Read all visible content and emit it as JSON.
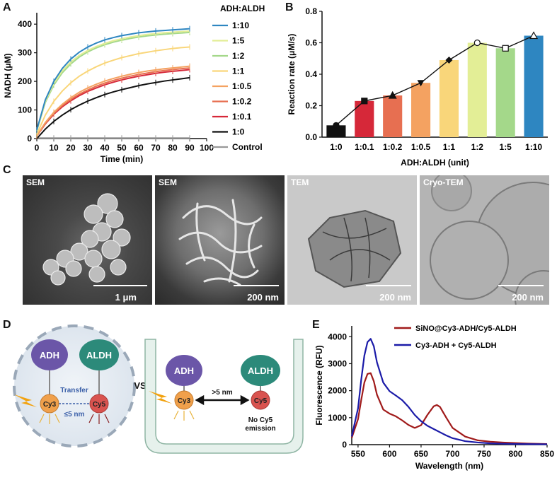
{
  "panels": {
    "a": "A",
    "b": "B",
    "c": "C",
    "d": "D",
    "e": "E"
  },
  "chart_data": [
    {
      "panel": "A",
      "type": "line",
      "xlabel": "Time (min)",
      "ylabel": "NADH (μM)",
      "xlim": [
        0,
        100
      ],
      "ylim": [
        0,
        440
      ],
      "xticks": [
        0,
        10,
        20,
        30,
        40,
        50,
        60,
        70,
        80,
        90,
        100
      ],
      "yticks": [
        0,
        100,
        200,
        300,
        400
      ],
      "legend_title": "ADH:ALDH",
      "legend_position": "right",
      "x": [
        0,
        5,
        10,
        15,
        20,
        25,
        30,
        35,
        40,
        45,
        50,
        55,
        60,
        65,
        70,
        75,
        80,
        85,
        90
      ],
      "series": [
        {
          "name": "1:10",
          "color": "#2e86c1",
          "values": [
            30,
            135,
            200,
            245,
            278,
            302,
            320,
            334,
            345,
            353,
            360,
            365,
            370,
            373,
            376,
            378,
            380,
            382,
            384
          ]
        },
        {
          "name": "1:5",
          "color": "#e3ee96",
          "values": [
            28,
            130,
            193,
            237,
            268,
            291,
            308,
            322,
            333,
            342,
            349,
            355,
            360,
            364,
            367,
            370,
            372,
            374,
            376
          ]
        },
        {
          "name": "1:2",
          "color": "#a4d88a",
          "values": [
            27,
            126,
            187,
            230,
            261,
            285,
            303,
            317,
            328,
            337,
            344,
            350,
            355,
            359,
            362,
            365,
            367,
            369,
            371
          ]
        },
        {
          "name": "1:1",
          "color": "#f9d67a",
          "values": [
            15,
            82,
            130,
            166,
            195,
            218,
            236,
            251,
            264,
            274,
            283,
            290,
            297,
            302,
            307,
            311,
            315,
            318,
            320
          ]
        },
        {
          "name": "1:0.5",
          "color": "#f4a261",
          "values": [
            10,
            56,
            92,
            120,
            143,
            162,
            177,
            190,
            201,
            210,
            218,
            225,
            231,
            236,
            240,
            244,
            247,
            250,
            253
          ]
        },
        {
          "name": "1:0.2",
          "color": "#e76f51",
          "values": [
            9,
            53,
            88,
            115,
            137,
            155,
            170,
            183,
            194,
            203,
            211,
            218,
            224,
            229,
            234,
            238,
            241,
            244,
            247
          ]
        },
        {
          "name": "1:0.1",
          "color": "#d62839",
          "values": [
            9,
            51,
            85,
            111,
            132,
            150,
            165,
            177,
            188,
            197,
            205,
            212,
            218,
            223,
            228,
            232,
            235,
            238,
            241
          ]
        },
        {
          "name": "1:0",
          "color": "#111111",
          "values": [
            0,
            33,
            60,
            82,
            101,
            117,
            131,
            143,
            154,
            163,
            171,
            178,
            185,
            191,
            196,
            201,
            205,
            209,
            213
          ]
        },
        {
          "name": "Control",
          "color": "#999999",
          "values": [
            2,
            2,
            2,
            2,
            2,
            2,
            2,
            2,
            2,
            2,
            2,
            2,
            2,
            2,
            2,
            2,
            2,
            2,
            2
          ]
        }
      ]
    },
    {
      "panel": "B",
      "type": "bar",
      "xlabel": "ADH:ALDH (unit)",
      "ylabel": "Reaction rate (μM/s)",
      "ylim": [
        0,
        0.8
      ],
      "yticks": [
        0,
        0.2,
        0.4,
        0.6,
        0.8
      ],
      "categories": [
        "1:0",
        "1:0.1",
        "1:0.2",
        "1:0.5",
        "1:1",
        "1:2",
        "1:5",
        "1:10"
      ],
      "values": [
        0.075,
        0.23,
        0.265,
        0.345,
        0.49,
        0.6,
        0.565,
        0.645
      ],
      "errors": [
        0.01,
        0.008,
        0.008,
        0.008,
        0.008,
        0.008,
        0.008,
        0.008
      ],
      "colors": [
        "#111111",
        "#d62839",
        "#e76f51",
        "#f4a261",
        "#f9d67a",
        "#e3ee96",
        "#a4d88a",
        "#2e86c1"
      ],
      "line_markers": [
        "circle",
        "square",
        "triangle",
        "inverted-triangle",
        "diamond",
        "circle",
        "square",
        "triangle"
      ]
    },
    {
      "panel": "E",
      "type": "line",
      "xlabel": "Wavelength (nm)",
      "ylabel": "Fluorescence (RFU)",
      "xlim": [
        540,
        850
      ],
      "ylim": [
        0,
        4400
      ],
      "xticks": [
        550,
        600,
        650,
        700,
        750,
        800,
        850
      ],
      "yticks": [
        0,
        1000,
        2000,
        3000,
        4000
      ],
      "legend_position": "top-right",
      "x": [
        540,
        550,
        555,
        560,
        565,
        570,
        575,
        580,
        590,
        600,
        610,
        620,
        630,
        640,
        650,
        660,
        670,
        675,
        680,
        690,
        700,
        720,
        740,
        760,
        780,
        800,
        820,
        850
      ],
      "series": [
        {
          "name": "SiNO@Cy3-ADH/Cy5-ALDH",
          "color": "#a01a1a",
          "values": [
            250,
            950,
            1650,
            2300,
            2620,
            2650,
            2350,
            1850,
            1300,
            1150,
            1050,
            900,
            730,
            620,
            720,
            1100,
            1420,
            1470,
            1400,
            1000,
            620,
            300,
            160,
            110,
            80,
            60,
            40,
            25
          ]
        },
        {
          "name": "Cy3-ADH + Cy5-ALDH",
          "color": "#1b1ba8",
          "values": [
            300,
            1350,
            2400,
            3300,
            3800,
            3920,
            3650,
            3050,
            2300,
            1980,
            1820,
            1650,
            1400,
            1100,
            870,
            700,
            580,
            520,
            460,
            340,
            240,
            130,
            80,
            50,
            35,
            25,
            20,
            15
          ]
        }
      ]
    }
  ],
  "panel_c": {
    "images": [
      {
        "label": "SEM",
        "scale": "1 μm"
      },
      {
        "label": "SEM",
        "scale": "200 nm"
      },
      {
        "label": "TEM",
        "scale": "200 nm"
      },
      {
        "label": "Cryo-TEM",
        "scale": "200 nm"
      }
    ]
  },
  "panel_d": {
    "adh": "ADH",
    "aldh": "ALDH",
    "cy3": "Cy3",
    "cy5": "Cy5",
    "transfer": "Transfer",
    "distance_close": "≤5 nm",
    "vs": "VS",
    "distance_far": ">5 nm",
    "no_emission_line1": "No Cy5",
    "no_emission_line2": "emission",
    "colors": {
      "adh": "#6b56a8",
      "aldh": "#2c8a7a",
      "cy3": "#f0a04b",
      "cy5": "#d9534f"
    }
  }
}
